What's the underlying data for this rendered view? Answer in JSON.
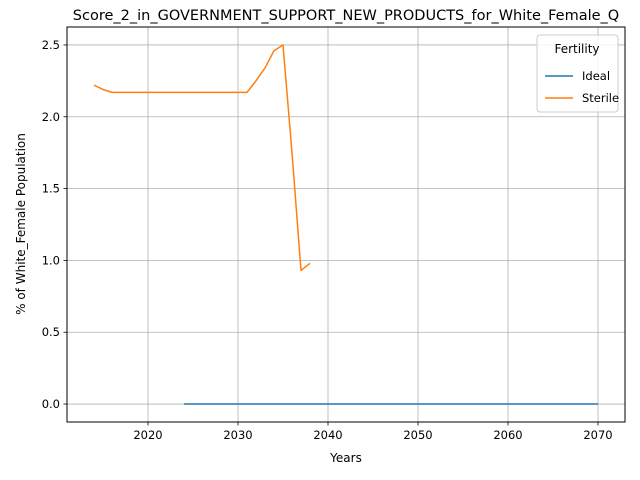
{
  "chart_data": {
    "type": "line",
    "title": "Score_2_in_GOVERNMENT_SUPPORT_NEW_PRODUCTS_for_White_Female_Q",
    "xlabel": "Years",
    "ylabel": "% of White_Female Population",
    "xlim": [
      2011,
      2073
    ],
    "ylim": [
      -0.125,
      2.625
    ],
    "xticks": [
      2020,
      2030,
      2040,
      2050,
      2060,
      2070
    ],
    "yticks": [
      0.0,
      0.5,
      1.0,
      1.5,
      2.0,
      2.5
    ],
    "xtick_labels": [
      "2020",
      "2030",
      "2040",
      "2050",
      "2060",
      "2070"
    ],
    "ytick_labels": [
      "0.0",
      "0.5",
      "1.0",
      "1.5",
      "2.0",
      "2.5"
    ],
    "grid": true,
    "legend": {
      "title": "Fertility",
      "placement": "top-right",
      "entries": [
        "Ideal",
        "Sterile"
      ]
    },
    "series": [
      {
        "name": "Ideal",
        "color": "#1f77b4",
        "x": [
          2024,
          2070
        ],
        "y": [
          0.0,
          0.0
        ]
      },
      {
        "name": "Sterile",
        "color": "#ff7f0e",
        "x": [
          2014,
          2015,
          2016,
          2020,
          2025,
          2030,
          2031,
          2032,
          2033,
          2034,
          2035,
          2036,
          2037,
          2038
        ],
        "y": [
          2.22,
          2.19,
          2.17,
          2.17,
          2.17,
          2.17,
          2.17,
          2.25,
          2.34,
          2.46,
          2.5,
          1.75,
          0.93,
          0.98
        ]
      }
    ]
  }
}
